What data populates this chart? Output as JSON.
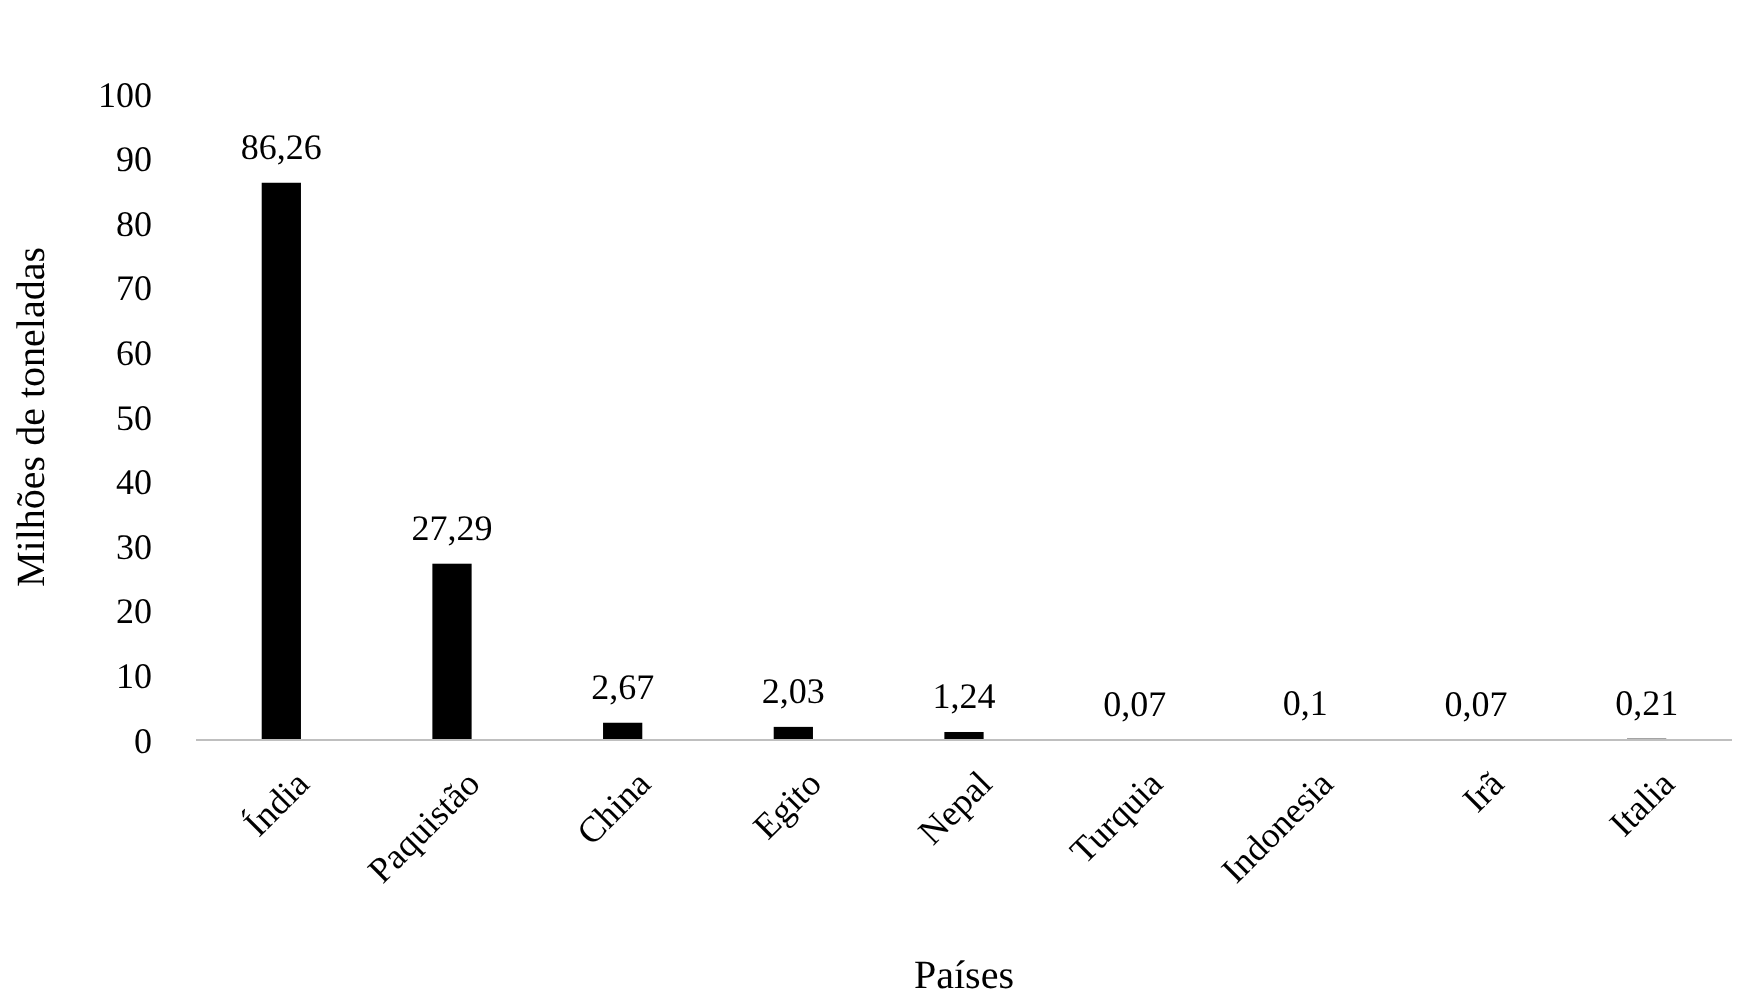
{
  "chart_data": {
    "type": "bar",
    "xlabel": "Países",
    "ylabel": "Milhões de toneladas",
    "categories": [
      "Índia",
      "Paquistão",
      "China",
      "Egito",
      "Nepal",
      "Turquia",
      "Indonesia",
      "Irã",
      "Italia"
    ],
    "values": [
      86.26,
      27.29,
      2.67,
      2.03,
      1.24,
      0.07,
      0.1,
      0.07,
      0.21
    ],
    "value_labels": [
      "86,26",
      "27,29",
      "2,67",
      "2,03",
      "1,24",
      "0,07",
      "0,1",
      "0,07",
      "0,21"
    ],
    "color": "#000000",
    "ylim": [
      0,
      100
    ],
    "yticks": [
      0,
      10,
      20,
      30,
      40,
      50,
      60,
      70,
      80,
      90,
      100
    ],
    "grid": false
  }
}
